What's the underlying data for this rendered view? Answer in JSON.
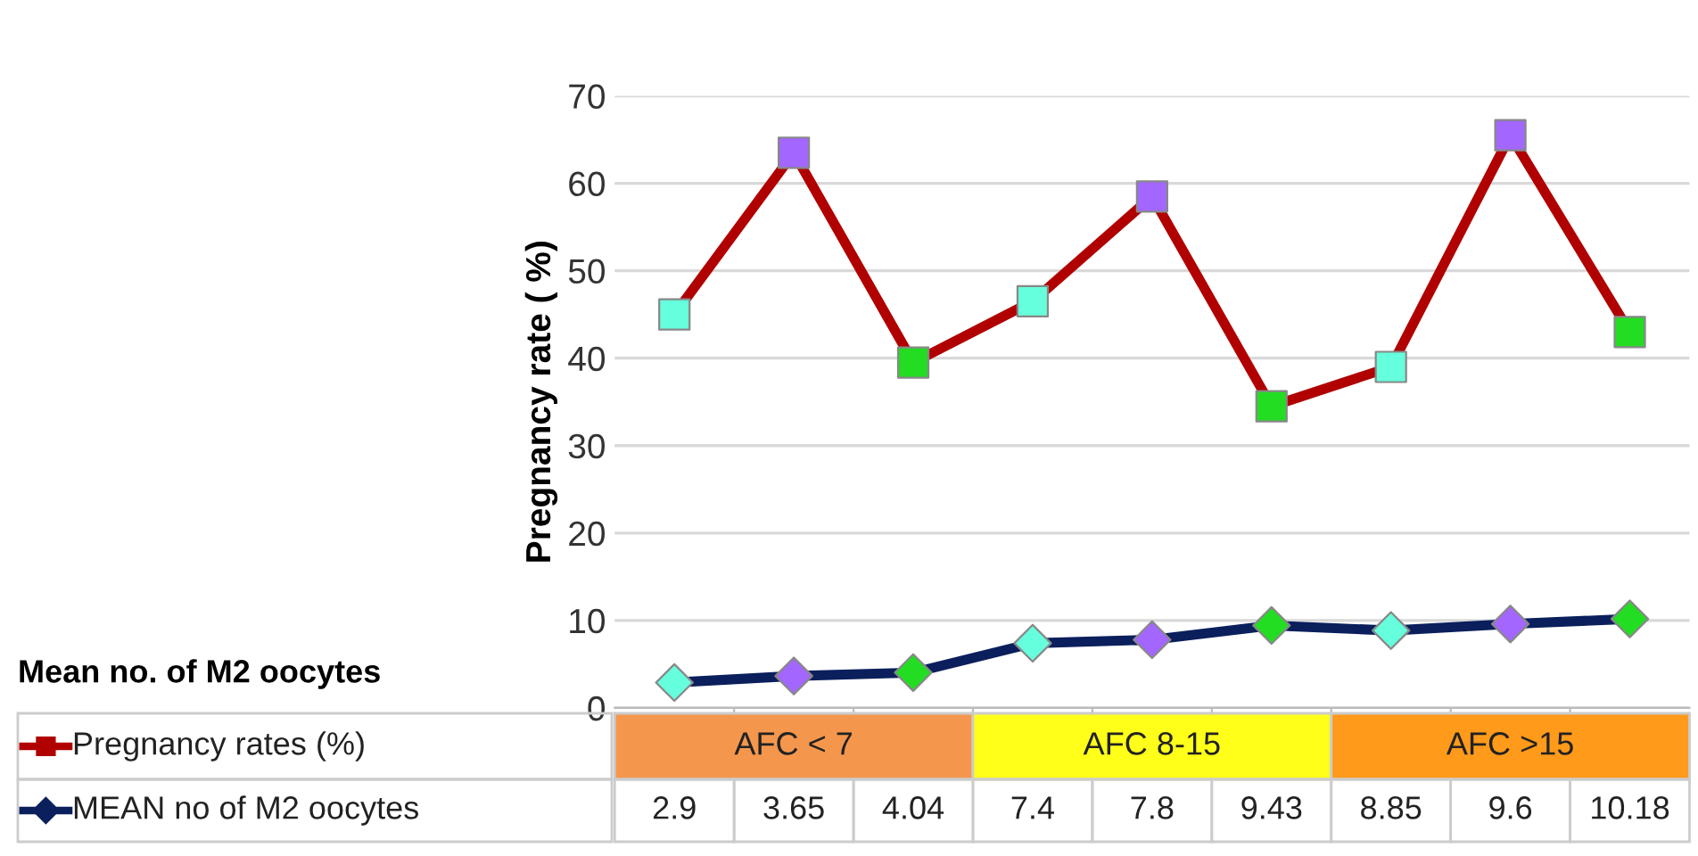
{
  "chart_data": {
    "type": "line",
    "ylabel": "Pregnancy rate ( %)",
    "categories": [
      null,
      null,
      null,
      null,
      null,
      null,
      null,
      null,
      null
    ],
    "series": [
      {
        "name": "Pregnancy rates (%)",
        "color": "#b00000",
        "marker": "square",
        "colors": [
          "#66ffdd",
          "#a366ff",
          "#22dd22",
          "#66ffdd",
          "#a366ff",
          "#22dd22",
          "#66ffdd",
          "#a366ff",
          "#22dd22"
        ],
        "values": [
          45,
          63.5,
          39.5,
          46.5,
          58.5,
          34.5,
          39,
          65.5,
          43
        ]
      },
      {
        "name": "MEAN no of M2 oocytes",
        "color": "#0a1f5c",
        "marker": "diamond",
        "colors": [
          "#66ffdd",
          "#a366ff",
          "#22dd22",
          "#66ffdd",
          "#a366ff",
          "#22dd22",
          "#66ffdd",
          "#a366ff",
          "#22dd22"
        ],
        "values": [
          2.9,
          3.65,
          4.04,
          7.4,
          7.8,
          9.43,
          8.85,
          9.6,
          10.18
        ],
        "value_labels": [
          "2.9",
          "3.65",
          "4.04",
          "7.4",
          "7.8",
          "9.43",
          "8.85",
          "9.6",
          "10.18"
        ]
      }
    ],
    "ylim": [
      0,
      70
    ],
    "yticks": [
      0,
      10,
      20,
      30,
      40,
      50,
      60,
      70
    ],
    "grid": "y",
    "legend": "bottom left",
    "annotations": [
      "Mean no. of M2 oocytes",
      "AFC < 7",
      "AFC 8-15",
      "AFC >15"
    ]
  }
}
